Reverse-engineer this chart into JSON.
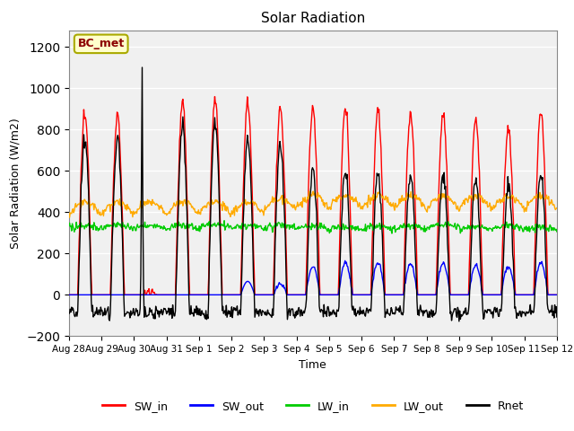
{
  "title": "Solar Radiation",
  "xlabel": "Time",
  "ylabel": "Solar Radiation (W/m2)",
  "ylim": [
    -200,
    1280
  ],
  "yticks": [
    -200,
    0,
    200,
    400,
    600,
    800,
    1000,
    1200
  ],
  "colors": {
    "SW_in": "#ff0000",
    "SW_out": "#0000ff",
    "LW_in": "#00cc00",
    "LW_out": "#ffaa00",
    "Rnet": "#000000"
  },
  "plot_bg": "#f0f0f0",
  "grid_color": "#ffffff",
  "annotation_text": "BC_met",
  "annotation_color": "#8b0000",
  "annotation_bg": "#ffffcc",
  "annotation_edge": "#aaaa00",
  "n_days": 15,
  "tick_labels": [
    "Aug 28",
    "Aug 29",
    "Aug 30",
    "Aug 31",
    "Sep 1",
    "Sep 2",
    "Sep 3",
    "Sep 4",
    "Sep 5",
    "Sep 6",
    "Sep 7",
    "Sep 8",
    "Sep 9",
    "Sep 10",
    "Sep 11",
    "Sep 12"
  ]
}
